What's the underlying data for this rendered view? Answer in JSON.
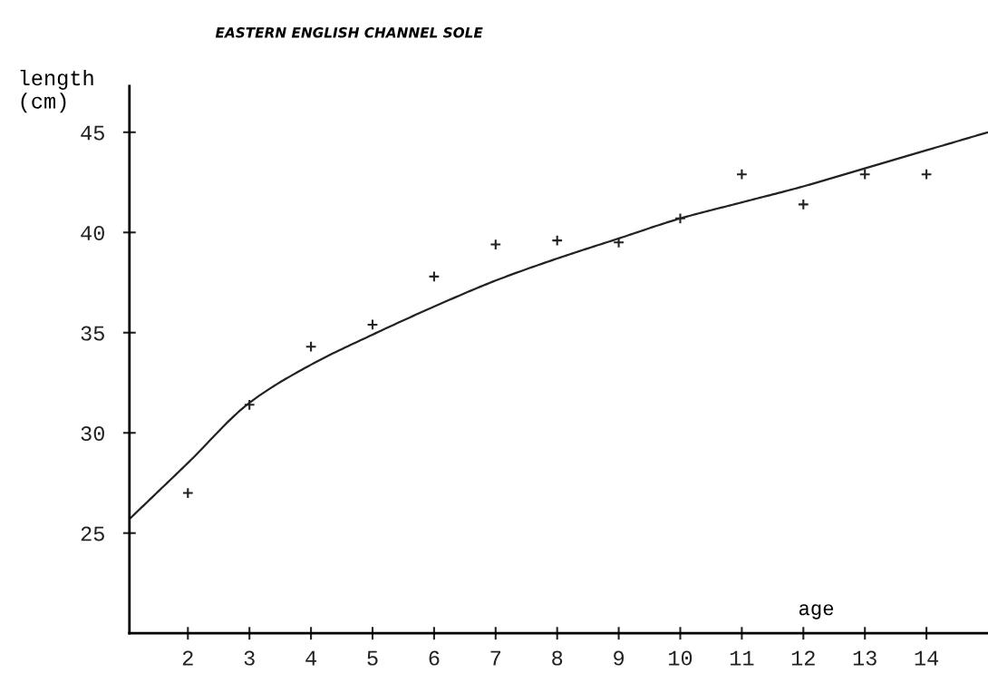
{
  "chart_data": {
    "type": "scatter",
    "title": "EASTERN ENGLISH CHANNEL SOLE",
    "xlabel": "age",
    "ylabel": "length\n(cm)",
    "xlim": [
      1.05,
      15
    ],
    "xticks": [
      2,
      3,
      4,
      5,
      6,
      7,
      8,
      9,
      10,
      11,
      12,
      13,
      14
    ],
    "ylim": [
      20,
      47.3
    ],
    "yticks": [
      25,
      30,
      35,
      40,
      45
    ],
    "grid": false,
    "legend": false,
    "series": [
      {
        "color": "#222222",
        "marker": "cross",
        "x": [
          2,
          3,
          4,
          5,
          6,
          7,
          8,
          9,
          10,
          11,
          12,
          13,
          14
        ],
        "values": [
          27.0,
          31.4,
          34.3,
          35.4,
          37.8,
          39.4,
          39.6,
          39.5,
          40.7,
          42.9,
          41.4,
          42.9,
          42.9
        ]
      },
      {
        "type": "line",
        "color": "#222222",
        "marker": "none",
        "line_style": "solid",
        "x": [
          1.05,
          2,
          3,
          4,
          5,
          6,
          7,
          8,
          9,
          10,
          11,
          12,
          13,
          14,
          15
        ],
        "values": [
          25.7,
          28.5,
          31.5,
          33.4,
          34.9,
          36.3,
          37.6,
          38.7,
          39.7,
          40.7,
          41.5,
          42.3,
          43.2,
          44.1,
          45.0
        ]
      }
    ]
  }
}
